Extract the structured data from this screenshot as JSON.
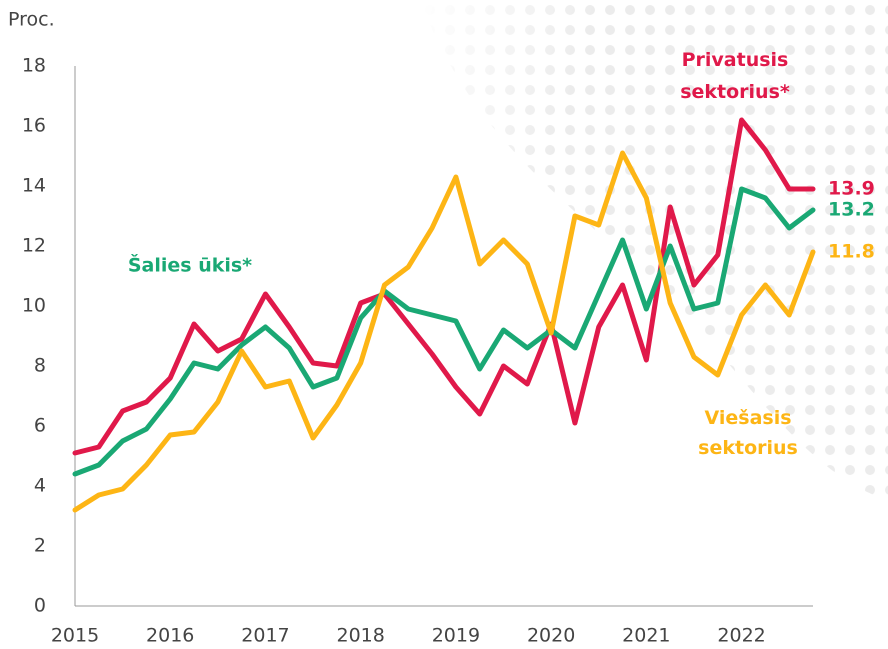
{
  "chart_data": {
    "type": "line",
    "y_label": "Proc.",
    "categories": [
      "2015",
      null,
      null,
      null,
      "2016",
      null,
      null,
      null,
      "2017",
      null,
      null,
      null,
      "2018",
      null,
      null,
      null,
      "2019",
      null,
      null,
      null,
      "2020",
      null,
      null,
      null,
      "2021",
      null,
      null,
      null,
      "2022",
      null,
      null,
      null
    ],
    "series": [
      {
        "name": "Privatusis sektorius*",
        "color": "#e0194a",
        "values": [
          5.1,
          5.3,
          6.5,
          6.8,
          7.6,
          9.4,
          8.5,
          8.9,
          10.4,
          9.3,
          8.1,
          8.0,
          10.1,
          10.4,
          9.4,
          8.4,
          7.3,
          6.4,
          8.0,
          7.4,
          9.4,
          6.1,
          9.3,
          10.7,
          8.2,
          13.3,
          10.7,
          11.7,
          16.2,
          15.2,
          13.9,
          13.9
        ]
      },
      {
        "name": "Šalies ūkis*",
        "color": "#1aa874",
        "values": [
          4.4,
          4.7,
          5.5,
          5.9,
          6.9,
          8.1,
          7.9,
          8.7,
          9.3,
          8.6,
          7.3,
          7.6,
          9.6,
          10.5,
          9.9,
          9.7,
          9.5,
          7.9,
          9.2,
          8.6,
          9.2,
          8.6,
          10.4,
          12.2,
          9.9,
          12.0,
          9.9,
          10.1,
          13.9,
          13.6,
          12.6,
          13.2
        ]
      },
      {
        "name": "Viešasis sektorius",
        "color": "#fdb515",
        "values": [
          3.2,
          3.7,
          3.9,
          4.7,
          5.7,
          5.8,
          6.8,
          8.5,
          7.3,
          7.5,
          5.6,
          6.7,
          8.1,
          10.7,
          11.3,
          12.6,
          14.3,
          11.4,
          12.2,
          11.4,
          9.1,
          13.0,
          12.7,
          15.1,
          13.6,
          10.1,
          8.3,
          7.7,
          9.7,
          10.7,
          9.7,
          11.8
        ]
      }
    ],
    "ylim": [
      0,
      18
    ],
    "yticks": [
      0,
      2,
      4,
      6,
      8,
      10,
      12,
      14,
      16,
      18
    ],
    "grid": false
  }
}
